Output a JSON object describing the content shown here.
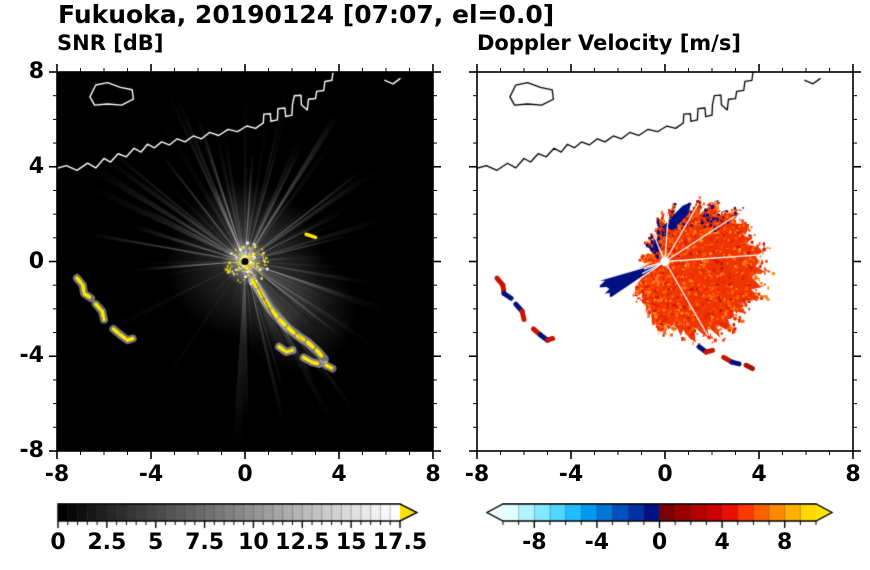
{
  "header": {
    "title": "Fukuoka, 20190124 [07:07, el=0.0]"
  },
  "chart_data": [
    {
      "type": "heatmap",
      "title": "SNR [dB]",
      "xlim": [
        -8,
        8
      ],
      "ylim": [
        -8,
        8
      ],
      "xticks": [
        -8,
        -4,
        0,
        4,
        8
      ],
      "yticks": [
        8,
        4,
        0,
        -4,
        -8
      ],
      "minor_tick_step": 1,
      "grid": false,
      "background": "#000000",
      "radar_center": [
        0,
        0
      ],
      "legend_position": "bottom-colorbar",
      "colorbar": {
        "vmin": 0,
        "vmax": 17.5,
        "ticks": [
          0,
          2.5,
          5,
          7.5,
          10,
          12.5,
          15,
          17.5
        ],
        "tick_labels": [
          "0",
          "2.5",
          "5",
          "7.5",
          "10",
          "12.5",
          "15",
          "17.5"
        ],
        "cells": 35,
        "gradient": [
          "#000000",
          "#ffffff"
        ],
        "over_arrow_color": "#ffe100",
        "arrow_left": false,
        "arrow_right": true
      },
      "content": "Black PPI with white radial beam streaks from the radar at the origin, bright yellow clutter core at the center, a yellow clutter arc toward the southeast, yellow island echoes to the west-southwest, and the Fukuoka coastline drawn in white."
    },
    {
      "type": "heatmap",
      "title": "Doppler Velocity [m/s]",
      "xlim": [
        -8,
        8
      ],
      "ylim": [
        -8,
        8
      ],
      "xticks": [
        -8,
        -4,
        0,
        4,
        8
      ],
      "yticks": [
        8,
        4,
        0,
        -4,
        -8
      ],
      "minor_tick_step": 1,
      "grid": false,
      "background": "#ffffff",
      "radar_center": [
        0,
        0
      ],
      "legend_position": "bottom-colorbar",
      "colorbar": {
        "vmin": -10,
        "vmax": 10,
        "ticks": [
          -8,
          -4,
          0,
          4,
          8
        ],
        "tick_labels": [
          "-8",
          "-4",
          "0",
          "4",
          "8"
        ],
        "cell_colors": [
          "#e0ffff",
          "#b0f4ff",
          "#80e8ff",
          "#50d6ff",
          "#20bcff",
          "#009af2",
          "#0076d8",
          "#0052c0",
          "#0032a6",
          "#001285",
          "#7f0005",
          "#9a0000",
          "#b40000",
          "#cf0000",
          "#ea1000",
          "#ff3800",
          "#ff6000",
          "#ff8800",
          "#ffb000",
          "#ffd800"
        ],
        "under_arrow_color": "#eefcff",
        "over_arrow_color": "#ffe600",
        "arrow_left": true,
        "arrow_right": true
      },
      "content": "Mostly positive (red-orange) Doppler velocities in an irregular echo east of the radar, a dark navy negative-velocity wedge pointing west-southwest from the origin, navy fringe on the northern edge, small red/navy island echoes to the west and south-southeast, and the coastline drawn in black."
    }
  ],
  "map_features": {
    "mainland": [
      [
        -8.3,
        3.85
      ],
      [
        -7.6,
        4.05
      ],
      [
        -7.15,
        3.85
      ],
      [
        -6.7,
        4.15
      ],
      [
        -6.35,
        3.95
      ],
      [
        -6.0,
        4.35
      ],
      [
        -5.72,
        4.2
      ],
      [
        -5.4,
        4.55
      ],
      [
        -5.05,
        4.42
      ],
      [
        -4.72,
        4.78
      ],
      [
        -4.42,
        4.62
      ],
      [
        -4.15,
        4.95
      ],
      [
        -3.85,
        4.8
      ],
      [
        -3.55,
        5.05
      ],
      [
        -3.22,
        4.92
      ],
      [
        -2.88,
        5.18
      ],
      [
        -2.55,
        5.05
      ],
      [
        -2.2,
        5.3
      ],
      [
        -1.85,
        5.18
      ],
      [
        -1.5,
        5.45
      ],
      [
        -1.12,
        5.32
      ],
      [
        -0.72,
        5.58
      ],
      [
        -0.32,
        5.48
      ],
      [
        0.08,
        5.72
      ],
      [
        0.45,
        5.62
      ],
      [
        0.78,
        5.85
      ],
      [
        0.8,
        6.22
      ],
      [
        1.08,
        6.24
      ],
      [
        1.1,
        5.92
      ],
      [
        1.38,
        5.98
      ],
      [
        1.4,
        6.45
      ],
      [
        1.7,
        6.48
      ],
      [
        1.73,
        6.12
      ],
      [
        2.0,
        6.18
      ],
      [
        2.02,
        6.62
      ],
      [
        2.1,
        7.0
      ],
      [
        2.38,
        7.02
      ],
      [
        2.4,
        6.62
      ],
      [
        2.65,
        6.4
      ],
      [
        2.7,
        6.85
      ],
      [
        3.0,
        6.88
      ],
      [
        3.05,
        7.18
      ],
      [
        3.35,
        7.22
      ],
      [
        3.4,
        7.6
      ],
      [
        3.7,
        7.65
      ],
      [
        3.78,
        8.3
      ]
    ],
    "island": [
      [
        -6.6,
        6.95
      ],
      [
        -6.35,
        7.45
      ],
      [
        -5.85,
        7.55
      ],
      [
        -5.3,
        7.35
      ],
      [
        -4.8,
        7.25
      ],
      [
        -4.75,
        6.85
      ],
      [
        -5.25,
        6.6
      ],
      [
        -5.85,
        6.65
      ],
      [
        -6.4,
        6.6
      ],
      [
        -6.6,
        6.95
      ]
    ],
    "islet": [
      [
        5.95,
        7.65
      ],
      [
        6.3,
        7.5
      ],
      [
        6.6,
        7.72
      ]
    ],
    "snr_coast_color": "#ffffff",
    "doppler_coast_color": "#000000"
  },
  "snr_features": {
    "beam_seed": 77,
    "beam_count": 120,
    "blocked_sector_deg": [
      192,
      250
    ],
    "core_color": "#ffe800",
    "clutter_color": "#ffe800",
    "halo_color": "rgba(255,255,255,0.45)",
    "clutter_arc": [
      [
        0.32,
        -0.8
      ],
      [
        0.55,
        -1.15
      ],
      [
        0.82,
        -1.6
      ],
      [
        1.08,
        -2.0
      ],
      [
        1.42,
        -2.4
      ],
      [
        1.82,
        -2.8
      ],
      [
        2.22,
        -3.12
      ],
      [
        2.68,
        -3.42
      ],
      [
        3.08,
        -3.78
      ],
      [
        3.38,
        -4.12
      ]
    ],
    "ne_dash": [
      [
        2.6,
        1.15
      ],
      [
        3.0,
        1.02
      ]
    ],
    "strong_ray_angles_deg": [
      14,
      38,
      64,
      86,
      108,
      128,
      152,
      170,
      300,
      322,
      341
    ],
    "shadow_ray_angles_deg": [
      297,
      306,
      318
    ]
  },
  "doppler_features": {
    "seed": 42,
    "blob_base_radius": 2.3,
    "blob_radius_amplitude": 1.7,
    "blob_phase_deg": 15,
    "blob_fill": "#ee3500",
    "speckle_colors": [
      "#ff3c00",
      "#e62800",
      "#ff6400",
      "#ff8c1a",
      "#c81400",
      "#ff7040"
    ],
    "navy": "#000f82",
    "wedge": {
      "a0": 196,
      "a1": 214,
      "r": 2.9
    },
    "top_navy_patch": [
      [
        0.05,
        1.45
      ],
      [
        0.35,
        1.95
      ],
      [
        0.75,
        2.35
      ],
      [
        1.1,
        2.5
      ],
      [
        1.0,
        2.02
      ],
      [
        0.6,
        1.6
      ],
      [
        0.28,
        1.32
      ]
    ],
    "white_ray_angles_deg": [
      4,
      33,
      60,
      86,
      113,
      200,
      208,
      300
    ],
    "center_dot_radius": 0.2
  },
  "fragments": [
    {
      "pts": [
        [
          -7.15,
          -0.7
        ],
        [
          -6.9,
          -1.0
        ],
        [
          -6.85,
          -1.35
        ],
        [
          -6.55,
          -1.55
        ]
      ],
      "doppler_colors": [
        "#c81400",
        "#c81400",
        "#001080"
      ]
    },
    {
      "pts": [
        [
          -6.35,
          -1.8
        ],
        [
          -6.08,
          -2.1
        ],
        [
          -6.0,
          -2.45
        ]
      ],
      "doppler_colors": [
        "#001080",
        "#c81400"
      ]
    },
    {
      "pts": [
        [
          -5.6,
          -2.85
        ],
        [
          -5.3,
          -3.1
        ],
        [
          -5.0,
          -3.32
        ],
        [
          -4.78,
          -3.25
        ]
      ],
      "doppler_colors": [
        "#c81400",
        "#001080",
        "#c81400"
      ]
    },
    {
      "pts": [
        [
          1.45,
          -3.6
        ],
        [
          1.75,
          -3.82
        ],
        [
          2.02,
          -3.75
        ]
      ],
      "doppler_colors": [
        "#001080",
        "#c81400"
      ]
    },
    {
      "pts": [
        [
          2.5,
          -4.05
        ],
        [
          2.85,
          -4.25
        ],
        [
          3.15,
          -4.32
        ]
      ],
      "doppler_colors": [
        "#c81400",
        "#001080"
      ]
    },
    {
      "pts": [
        [
          3.45,
          -4.38
        ],
        [
          3.72,
          -4.52
        ]
      ],
      "doppler_colors": [
        "#b01000"
      ]
    }
  ]
}
